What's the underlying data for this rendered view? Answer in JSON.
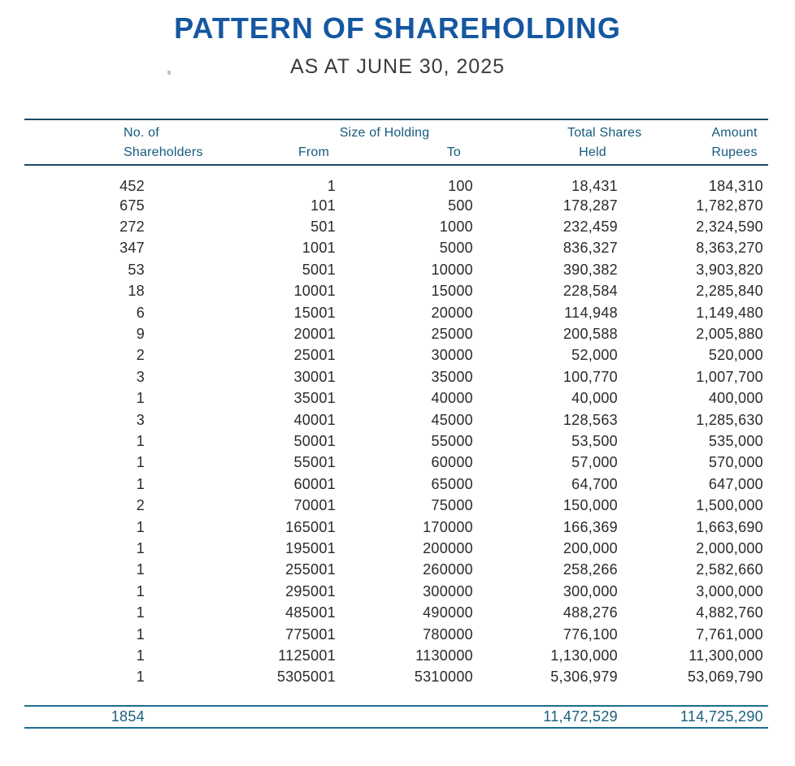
{
  "page": {
    "title": "PATTERN OF SHAREHOLDING",
    "subtitle": "AS AT JUNE 30, 2025"
  },
  "colors": {
    "title_blue": "#1557A0",
    "header_teal": "#155B7E",
    "rule_dark": "#1D4A66",
    "rule_teal": "#1F6E92",
    "body_text": "#2A2A2A",
    "total_text": "#19607F"
  },
  "table": {
    "headers": {
      "shareholders_line1": "No. of",
      "shareholders_line2": "Shareholders",
      "size_of_holding": "Size of Holding",
      "from": "From",
      "to": "To",
      "total_shares_line1": "Total Shares",
      "total_shares_line2": "Held",
      "amount_line1": "Amount",
      "amount_line2": "Rupees"
    },
    "rows": [
      {
        "no_of_shareholders": "452",
        "from": "1",
        "to": "100",
        "total_shares": "18,431",
        "amount": "184,310"
      },
      {
        "no_of_shareholders": "675",
        "from": "101",
        "to": "500",
        "total_shares": "178,287",
        "amount": "1,782,870"
      },
      {
        "no_of_shareholders": "272",
        "from": "501",
        "to": "1000",
        "total_shares": "232,459",
        "amount": "2,324,590"
      },
      {
        "no_of_shareholders": "347",
        "from": "1001",
        "to": "5000",
        "total_shares": "836,327",
        "amount": "8,363,270"
      },
      {
        "no_of_shareholders": "53",
        "from": "5001",
        "to": "10000",
        "total_shares": "390,382",
        "amount": "3,903,820"
      },
      {
        "no_of_shareholders": "18",
        "from": "10001",
        "to": "15000",
        "total_shares": "228,584",
        "amount": "2,285,840"
      },
      {
        "no_of_shareholders": "6",
        "from": "15001",
        "to": "20000",
        "total_shares": "114,948",
        "amount": "1,149,480"
      },
      {
        "no_of_shareholders": "9",
        "from": "20001",
        "to": "25000",
        "total_shares": "200,588",
        "amount": "2,005,880"
      },
      {
        "no_of_shareholders": "2",
        "from": "25001",
        "to": "30000",
        "total_shares": "52,000",
        "amount": "520,000"
      },
      {
        "no_of_shareholders": "3",
        "from": "30001",
        "to": "35000",
        "total_shares": "100,770",
        "amount": "1,007,700"
      },
      {
        "no_of_shareholders": "1",
        "from": "35001",
        "to": "40000",
        "total_shares": "40,000",
        "amount": "400,000"
      },
      {
        "no_of_shareholders": "3",
        "from": "40001",
        "to": "45000",
        "total_shares": "128,563",
        "amount": "1,285,630"
      },
      {
        "no_of_shareholders": "1",
        "from": "50001",
        "to": "55000",
        "total_shares": "53,500",
        "amount": "535,000"
      },
      {
        "no_of_shareholders": "1",
        "from": "55001",
        "to": "60000",
        "total_shares": "57,000",
        "amount": "570,000"
      },
      {
        "no_of_shareholders": "1",
        "from": "60001",
        "to": "65000",
        "total_shares": "64,700",
        "amount": "647,000"
      },
      {
        "no_of_shareholders": "2",
        "from": "70001",
        "to": "75000",
        "total_shares": "150,000",
        "amount": "1,500,000"
      },
      {
        "no_of_shareholders": "1",
        "from": "165001",
        "to": "170000",
        "total_shares": "166,369",
        "amount": "1,663,690"
      },
      {
        "no_of_shareholders": "1",
        "from": "195001",
        "to": "200000",
        "total_shares": "200,000",
        "amount": "2,000,000"
      },
      {
        "no_of_shareholders": "1",
        "from": "255001",
        "to": "260000",
        "total_shares": "258,266",
        "amount": "2,582,660"
      },
      {
        "no_of_shareholders": "1",
        "from": "295001",
        "to": "300000",
        "total_shares": "300,000",
        "amount": "3,000,000"
      },
      {
        "no_of_shareholders": "1",
        "from": "485001",
        "to": "490000",
        "total_shares": "488,276",
        "amount": "4,882,760"
      },
      {
        "no_of_shareholders": "1",
        "from": "775001",
        "to": "780000",
        "total_shares": "776,100",
        "amount": "7,761,000"
      },
      {
        "no_of_shareholders": "1",
        "from": "1125001",
        "to": "1130000",
        "total_shares": "1,130,000",
        "amount": "11,300,000"
      },
      {
        "no_of_shareholders": "1",
        "from": "5305001",
        "to": "5310000",
        "total_shares": "5,306,979",
        "amount": "53,069,790"
      }
    ],
    "totals": {
      "shareholders": "1854",
      "total_shares": "11,472,529",
      "amount": "114,725,290"
    }
  }
}
